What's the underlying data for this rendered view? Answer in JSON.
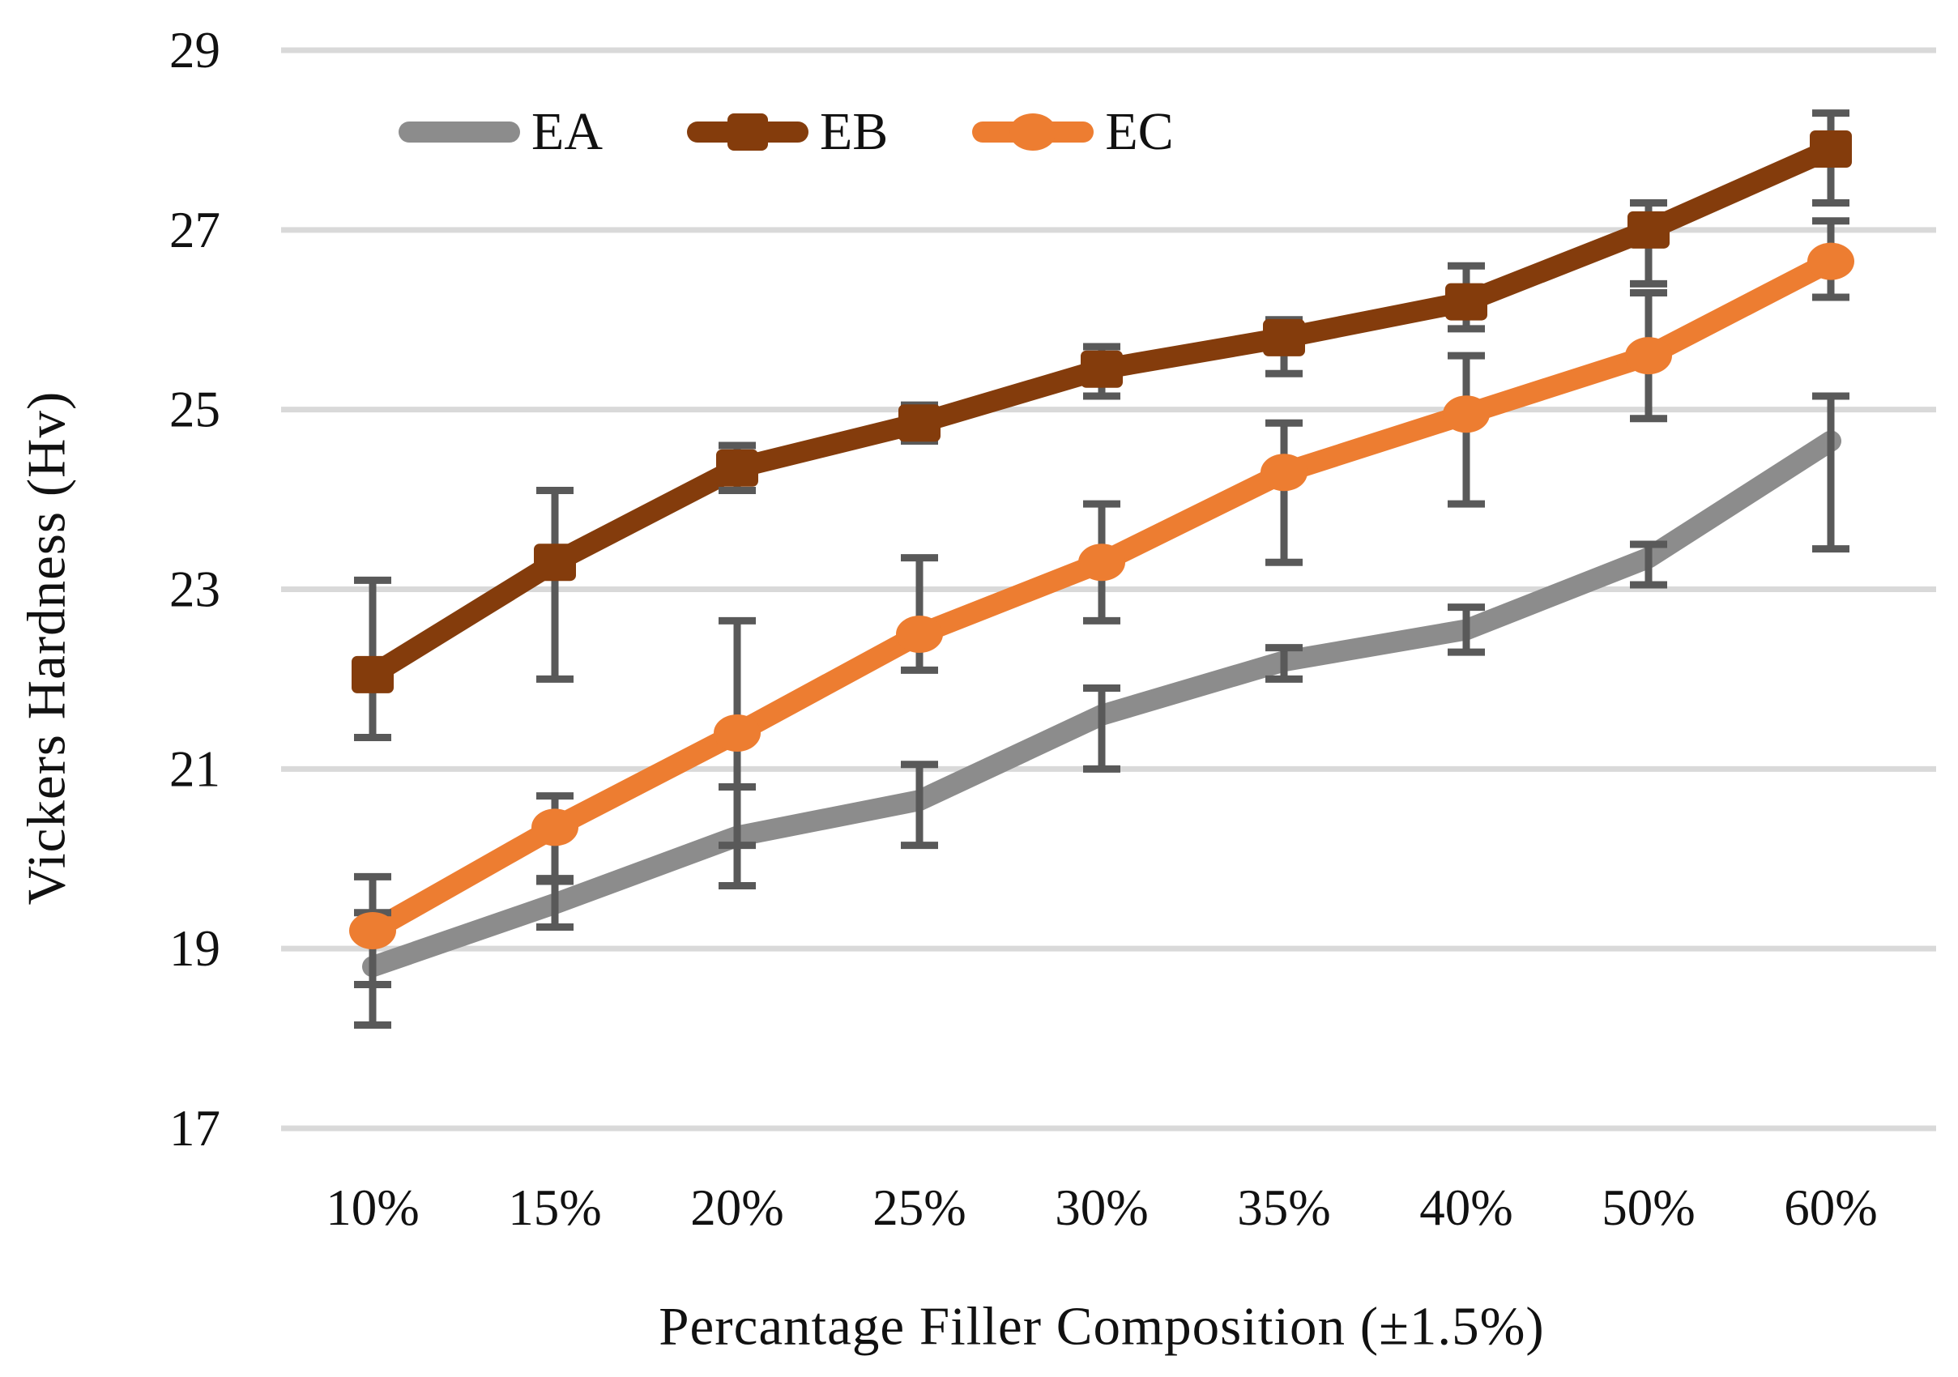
{
  "chart_data": {
    "type": "line",
    "title": "",
    "xlabel": "Percantage Filler Composition (±1.5%)",
    "ylabel": "Vickers Hardness (Hv)",
    "categories": [
      "10%",
      "15%",
      "20%",
      "25%",
      "30%",
      "35%",
      "40%",
      "50%",
      "60%"
    ],
    "y_axis": {
      "min": 17,
      "max": 29,
      "tick_step": 2,
      "ticks": [
        29,
        27,
        25,
        23,
        21,
        19,
        17
      ]
    },
    "grid": true,
    "gridline_color": "#d9d9d9",
    "error_bar_color": "#595959",
    "tick_label_color": "#111111",
    "legend_position": "top-inside",
    "series": [
      {
        "name": "EA",
        "color": "#8c8c8c",
        "marker": "none",
        "values": [
          18.8,
          19.5,
          20.25,
          20.65,
          21.6,
          22.2,
          22.55,
          23.35,
          24.65
        ],
        "error_minus": [
          0.65,
          0.26,
          0.55,
          0.5,
          0.6,
          0.2,
          0.25,
          0.3,
          1.2
        ],
        "error_plus": [
          0.6,
          0.28,
          0.55,
          0.4,
          0.3,
          0.15,
          0.25,
          0.15,
          0.5
        ]
      },
      {
        "name": "EB",
        "color": "#843c0c",
        "marker": "square",
        "values": [
          22.05,
          23.3,
          24.35,
          24.85,
          25.45,
          25.8,
          26.2,
          27.0,
          27.9
        ],
        "error_minus": [
          0.7,
          1.3,
          0.25,
          0.2,
          0.3,
          0.4,
          0.3,
          0.6,
          0.6
        ],
        "error_plus": [
          1.05,
          0.8,
          0.25,
          0.2,
          0.25,
          0.2,
          0.4,
          0.3,
          0.4
        ]
      },
      {
        "name": "EC",
        "color": "#ed7d31",
        "marker": "circle",
        "values": [
          19.2,
          20.35,
          21.4,
          22.5,
          23.3,
          24.3,
          24.95,
          25.6,
          26.65
        ],
        "error_minus": [
          0.6,
          0.6,
          1.25,
          0.4,
          0.65,
          1.0,
          1.0,
          0.7,
          0.4
        ],
        "error_plus": [
          0.6,
          0.35,
          1.25,
          0.85,
          0.65,
          0.55,
          0.65,
          0.7,
          0.45
        ]
      }
    ]
  },
  "legend": {
    "items": [
      {
        "label": "EA"
      },
      {
        "label": "EB"
      },
      {
        "label": "EC"
      }
    ]
  }
}
